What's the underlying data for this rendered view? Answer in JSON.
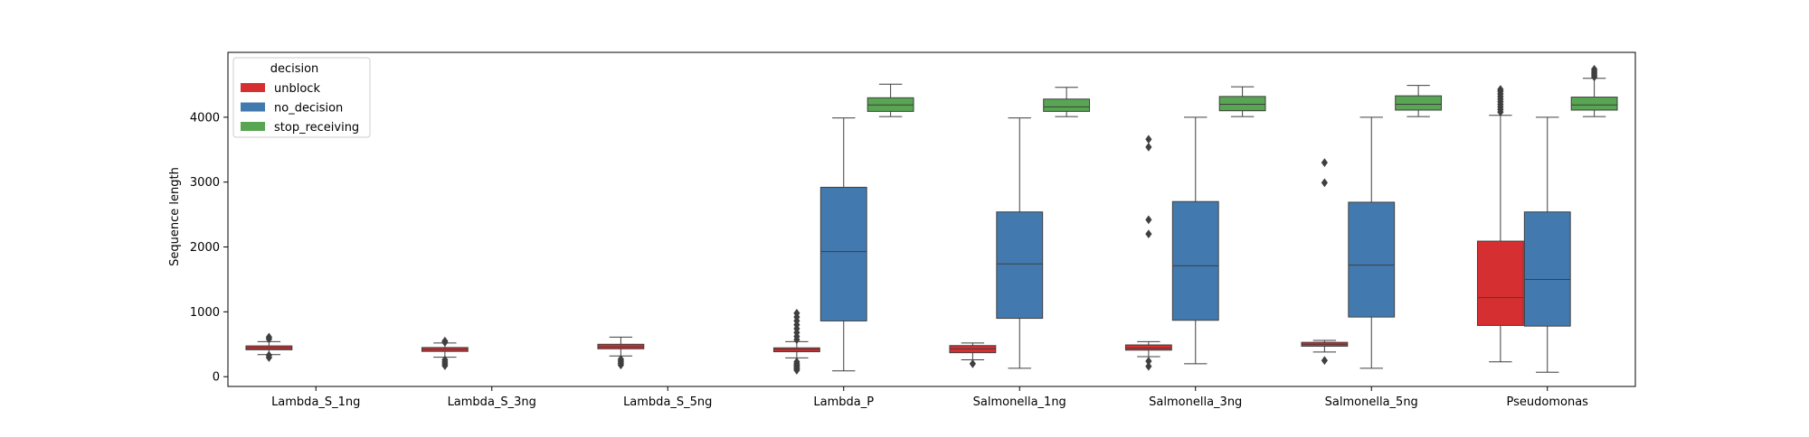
{
  "chart_data": {
    "type": "box",
    "ylabel": "Sequence length",
    "xlabel": "",
    "ylim": [
      -150,
      5000
    ],
    "yticks": [
      0,
      1000,
      2000,
      3000,
      4000
    ],
    "categories": [
      "Lambda_S_1ng",
      "Lambda_S_3ng",
      "Lambda_S_5ng",
      "Lambda_P",
      "Salmonella_1ng",
      "Salmonella_3ng",
      "Salmonella_5ng",
      "Pseudomonas"
    ],
    "legend": {
      "title": "decision",
      "position": "top-left",
      "entries": [
        "unblock",
        "no_decision",
        "stop_receiving"
      ]
    },
    "colors": {
      "unblock": "#d62f32",
      "no_decision": "#427ab0",
      "stop_receiving": "#58a553"
    },
    "series": [
      {
        "name": "unblock",
        "boxes": [
          {
            "category": "Lambda_S_1ng",
            "whislo": 340,
            "q1": 415,
            "med": 445,
            "q3": 475,
            "whishi": 540,
            "fliers": [
              295,
              330,
              580,
              610
            ]
          },
          {
            "category": "Lambda_S_3ng",
            "whislo": 300,
            "q1": 390,
            "med": 420,
            "q3": 450,
            "whishi": 520,
            "fliers": [
              170,
              200,
              230,
              260,
              530,
              550
            ]
          },
          {
            "category": "Lambda_S_5ng",
            "whislo": 320,
            "q1": 430,
            "med": 460,
            "q3": 500,
            "whishi": 610,
            "fliers": [
              180,
              210,
              240,
              270
            ]
          },
          {
            "category": "Lambda_P",
            "whislo": 290,
            "q1": 385,
            "med": 420,
            "q3": 445,
            "whishi": 540,
            "fliers": [
              100,
              120,
              140,
              160,
              180,
              200,
              230,
              570,
              620,
              680,
              740,
              800,
              860,
              920,
              980
            ]
          },
          {
            "category": "Salmonella_1ng",
            "whislo": 260,
            "q1": 370,
            "med": 430,
            "q3": 480,
            "whishi": 520,
            "fliers": [
              200
            ]
          },
          {
            "category": "Salmonella_3ng",
            "whislo": 310,
            "q1": 410,
            "med": 440,
            "q3": 490,
            "whishi": 540,
            "fliers": [
              160,
              240,
              2200,
              2420,
              3540,
              3660
            ]
          },
          {
            "category": "Salmonella_5ng",
            "whislo": 380,
            "q1": 470,
            "med": 500,
            "q3": 530,
            "whishi": 560,
            "fliers": [
              250,
              2990,
              3300
            ]
          },
          {
            "category": "Pseudomonas",
            "whislo": 230,
            "q1": 790,
            "med": 1220,
            "q3": 2090,
            "whishi": 4030,
            "fliers": [
              4080,
              4120,
              4160,
              4200,
              4240,
              4280,
              4320,
              4360,
              4400,
              4430
            ]
          }
        ]
      },
      {
        "name": "no_decision",
        "boxes": [
          {
            "category": "Lambda_P",
            "whislo": 90,
            "q1": 860,
            "med": 1930,
            "q3": 2920,
            "whishi": 3990,
            "fliers": []
          },
          {
            "category": "Salmonella_1ng",
            "whislo": 130,
            "q1": 900,
            "med": 1740,
            "q3": 2540,
            "whishi": 3990,
            "fliers": []
          },
          {
            "category": "Salmonella_3ng",
            "whislo": 200,
            "q1": 870,
            "med": 1710,
            "q3": 2700,
            "whishi": 4000,
            "fliers": []
          },
          {
            "category": "Salmonella_5ng",
            "whislo": 130,
            "q1": 920,
            "med": 1720,
            "q3": 2690,
            "whishi": 4000,
            "fliers": []
          },
          {
            "category": "Pseudomonas",
            "whislo": 70,
            "q1": 780,
            "med": 1500,
            "q3": 2540,
            "whishi": 4000,
            "fliers": []
          }
        ]
      },
      {
        "name": "stop_receiving",
        "boxes": [
          {
            "category": "Lambda_P",
            "whislo": 4010,
            "q1": 4090,
            "med": 4190,
            "q3": 4300,
            "whishi": 4510,
            "fliers": []
          },
          {
            "category": "Salmonella_1ng",
            "whislo": 4010,
            "q1": 4090,
            "med": 4160,
            "q3": 4280,
            "whishi": 4460,
            "fliers": []
          },
          {
            "category": "Salmonella_3ng",
            "whislo": 4010,
            "q1": 4100,
            "med": 4200,
            "q3": 4320,
            "whishi": 4470,
            "fliers": []
          },
          {
            "category": "Salmonella_5ng",
            "whislo": 4010,
            "q1": 4110,
            "med": 4200,
            "q3": 4330,
            "whishi": 4490,
            "fliers": []
          },
          {
            "category": "Pseudomonas",
            "whislo": 4010,
            "q1": 4110,
            "med": 4190,
            "q3": 4310,
            "whishi": 4600,
            "fliers": [
              4620,
              4650,
              4680,
              4710,
              4740
            ]
          }
        ]
      }
    ]
  }
}
